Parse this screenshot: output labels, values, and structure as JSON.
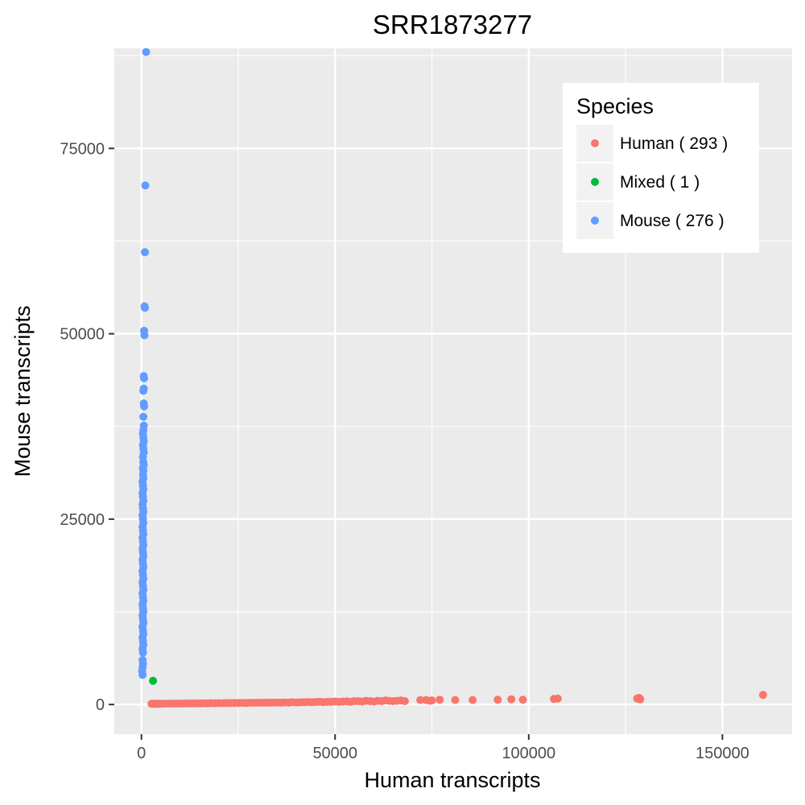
{
  "chart_data": {
    "type": "scatter",
    "title": "SRR1873277",
    "xlabel": "Human transcripts",
    "ylabel": "Mouse transcripts",
    "xlim": [
      -7000,
      168000
    ],
    "ylim": [
      -4000,
      88500
    ],
    "x_ticks": [
      0,
      50000,
      100000,
      150000
    ],
    "x_tick_labels": [
      "0",
      "50000",
      "100000",
      "150000"
    ],
    "y_ticks": [
      0,
      25000,
      50000,
      75000
    ],
    "y_tick_labels": [
      "0",
      "25000",
      "50000",
      "75000"
    ],
    "grid": true,
    "legend": {
      "title": "Species",
      "position": "top-right"
    },
    "series": [
      {
        "name": "Human ( 293 )",
        "color": "#F8766D",
        "points": [
          [
            160500,
            1300
          ],
          [
            128500,
            900
          ],
          [
            128000,
            800
          ],
          [
            128800,
            700
          ],
          [
            107500,
            800
          ],
          [
            106500,
            750
          ],
          [
            98500,
            650
          ],
          [
            95500,
            700
          ],
          [
            92000,
            650
          ],
          [
            85500,
            600
          ],
          [
            81000,
            600
          ],
          [
            77000,
            650
          ],
          [
            75000,
            550
          ],
          [
            74500,
            500
          ],
          [
            73500,
            600
          ],
          [
            72000,
            600
          ],
          [
            68000,
            450
          ],
          [
            67000,
            550
          ],
          [
            66000,
            500
          ],
          [
            65000,
            450
          ],
          [
            64000,
            500
          ],
          [
            63000,
            550
          ],
          [
            62000,
            450
          ],
          [
            61000,
            500
          ],
          [
            60000,
            400
          ],
          [
            59000,
            450
          ],
          [
            58000,
            500
          ],
          [
            57000,
            400
          ],
          [
            56000,
            450
          ],
          [
            55000,
            450
          ],
          [
            54000,
            380
          ],
          [
            53000,
            420
          ],
          [
            52000,
            400
          ],
          [
            51000,
            350
          ],
          [
            50000,
            400
          ],
          [
            49000,
            380
          ],
          [
            48000,
            350
          ],
          [
            47000,
            320
          ],
          [
            46000,
            380
          ],
          [
            45000,
            340
          ],
          [
            44000,
            300
          ],
          [
            43000,
            330
          ],
          [
            42000,
            320
          ],
          [
            41000,
            300
          ],
          [
            40000,
            280
          ],
          [
            39000,
            300
          ],
          [
            38000,
            260
          ],
          [
            37000,
            280
          ],
          [
            36000,
            250
          ],
          [
            35000,
            270
          ],
          [
            34000,
            260
          ],
          [
            33000,
            240
          ],
          [
            32000,
            250
          ],
          [
            31000,
            230
          ],
          [
            30000,
            240
          ],
          [
            29000,
            220
          ],
          [
            28000,
            230
          ],
          [
            27000,
            210
          ],
          [
            26000,
            220
          ],
          [
            25000,
            200
          ],
          [
            24000,
            210
          ],
          [
            23000,
            190
          ],
          [
            22000,
            200
          ],
          [
            21000,
            180
          ],
          [
            20000,
            190
          ],
          [
            19000,
            170
          ],
          [
            18000,
            180
          ],
          [
            17000,
            160
          ],
          [
            16000,
            170
          ],
          [
            15000,
            150
          ],
          [
            14000,
            160
          ],
          [
            13000,
            140
          ],
          [
            12000,
            150
          ],
          [
            11000,
            130
          ],
          [
            10000,
            140
          ],
          [
            9000,
            120
          ],
          [
            8000,
            130
          ],
          [
            7000,
            110
          ],
          [
            6000,
            120
          ],
          [
            5000,
            100
          ],
          [
            4500,
            110
          ],
          [
            4000,
            100
          ],
          [
            3500,
            90
          ],
          [
            3000,
            100
          ],
          [
            2600,
            90
          ]
        ]
      },
      {
        "name": "Mixed ( 1 )",
        "color": "#00BA38",
        "points": [
          [
            3000,
            3200
          ]
        ]
      },
      {
        "name": "Mouse ( 276 )",
        "color": "#619CFF",
        "points": [
          [
            1200,
            88000
          ],
          [
            1000,
            70000
          ],
          [
            900,
            61000
          ],
          [
            800,
            53700
          ],
          [
            900,
            53500
          ],
          [
            700,
            50400
          ],
          [
            800,
            49800
          ],
          [
            600,
            44300
          ],
          [
            700,
            44000
          ],
          [
            600,
            42600
          ],
          [
            500,
            42300
          ],
          [
            600,
            40600
          ],
          [
            700,
            40200
          ],
          [
            500,
            38800
          ],
          [
            600,
            37600
          ],
          [
            500,
            37000
          ],
          [
            400,
            36500
          ],
          [
            500,
            36000
          ],
          [
            600,
            35500
          ],
          [
            400,
            35000
          ],
          [
            500,
            34500
          ],
          [
            600,
            34000
          ],
          [
            400,
            33400
          ],
          [
            500,
            32700
          ],
          [
            600,
            32300
          ],
          [
            400,
            31900
          ],
          [
            500,
            31500
          ],
          [
            400,
            31000
          ],
          [
            500,
            30500
          ],
          [
            300,
            30000
          ],
          [
            400,
            29500
          ],
          [
            500,
            29000
          ],
          [
            300,
            28500
          ],
          [
            400,
            28000
          ],
          [
            500,
            27500
          ],
          [
            300,
            27000
          ],
          [
            400,
            26500
          ],
          [
            500,
            26000
          ],
          [
            300,
            25500
          ],
          [
            400,
            25000
          ],
          [
            500,
            24500
          ],
          [
            300,
            24000
          ],
          [
            400,
            23500
          ],
          [
            500,
            23000
          ],
          [
            300,
            22500
          ],
          [
            400,
            22000
          ],
          [
            500,
            21500
          ],
          [
            300,
            21000
          ],
          [
            400,
            20500
          ],
          [
            500,
            20000
          ],
          [
            300,
            19500
          ],
          [
            400,
            19000
          ],
          [
            500,
            18500
          ],
          [
            300,
            18000
          ],
          [
            400,
            17500
          ],
          [
            500,
            17000
          ],
          [
            300,
            16500
          ],
          [
            400,
            16000
          ],
          [
            500,
            15500
          ],
          [
            300,
            15000
          ],
          [
            400,
            14500
          ],
          [
            500,
            14000
          ],
          [
            300,
            13500
          ],
          [
            400,
            13000
          ],
          [
            500,
            12500
          ],
          [
            300,
            12000
          ],
          [
            400,
            11500
          ],
          [
            500,
            11000
          ],
          [
            300,
            10500
          ],
          [
            400,
            10000
          ],
          [
            500,
            9500
          ],
          [
            300,
            9000
          ],
          [
            400,
            8500
          ],
          [
            500,
            8000
          ],
          [
            300,
            7500
          ],
          [
            400,
            7000
          ],
          [
            300,
            6000
          ],
          [
            400,
            5500
          ],
          [
            300,
            5000
          ],
          [
            200,
            4500
          ],
          [
            300,
            4000
          ]
        ]
      }
    ]
  }
}
